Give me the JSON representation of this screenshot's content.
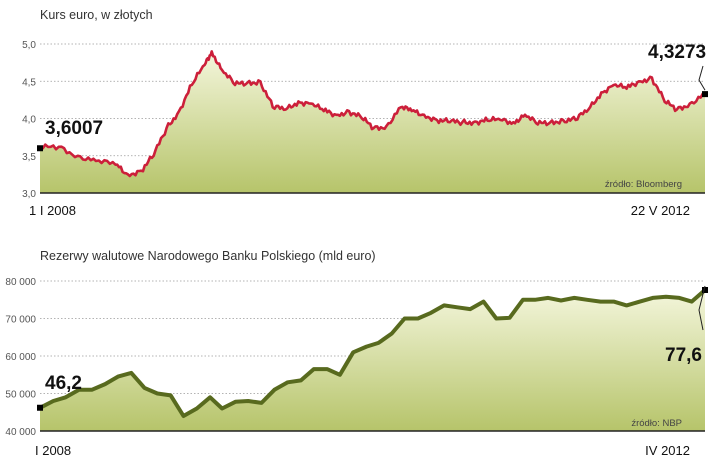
{
  "colors": {
    "top_line": "#cc1f3a",
    "bottom_line": "#586a1e",
    "area_light": "#f4f6dc",
    "area_dark": "#b6c46a",
    "grid": "#9a9a9a",
    "marker": "#000000"
  },
  "chart_data": [
    {
      "type": "area",
      "title": "Kurs euro, w złotych",
      "source": "źródło: Bloomberg",
      "x_start_label": "1 I 2008",
      "x_end_label": "22 V 2012",
      "x_range": [
        "2008-01-01",
        "2012-05-22"
      ],
      "yticks": [
        "5,0",
        "4,5",
        "4,0",
        "3,5",
        "3,0"
      ],
      "ylim": [
        3.0,
        5.0
      ],
      "grid": true,
      "callouts": {
        "start": "3,6007",
        "end": "4,3273"
      },
      "series": [
        {
          "x": [
            "2008-01-01",
            "2008-02-15",
            "2008-04-01",
            "2008-05-15",
            "2008-07-01",
            "2008-07-31",
            "2008-09-01",
            "2008-10-01",
            "2008-11-01",
            "2008-12-01",
            "2009-01-01",
            "2009-02-01",
            "2009-02-18",
            "2009-03-15",
            "2009-04-15",
            "2009-05-15",
            "2009-06-15",
            "2009-07-15",
            "2009-08-15",
            "2009-09-15",
            "2009-10-15",
            "2009-11-15",
            "2009-12-15",
            "2010-01-15",
            "2010-02-15",
            "2010-03-15",
            "2010-04-15",
            "2010-05-20",
            "2010-06-15",
            "2010-07-15",
            "2010-08-15",
            "2010-09-15",
            "2010-10-15",
            "2010-11-15",
            "2010-12-15",
            "2011-01-15",
            "2011-02-15",
            "2011-03-15",
            "2011-04-15",
            "2011-05-15",
            "2011-06-15",
            "2011-07-15",
            "2011-08-15",
            "2011-09-15",
            "2011-10-15",
            "2011-11-15",
            "2011-12-15",
            "2012-01-15",
            "2012-02-15",
            "2012-03-15",
            "2012-04-15",
            "2012-05-22"
          ],
          "values": [
            3.6007,
            3.62,
            3.5,
            3.43,
            3.38,
            3.25,
            3.3,
            3.5,
            3.87,
            4.1,
            4.45,
            4.72,
            4.9,
            4.65,
            4.45,
            4.48,
            4.5,
            4.15,
            4.12,
            4.23,
            4.2,
            4.1,
            4.05,
            4.1,
            4.0,
            3.87,
            3.9,
            4.15,
            4.1,
            4.05,
            3.98,
            3.95,
            3.95,
            3.96,
            3.97,
            3.98,
            3.95,
            4.05,
            3.92,
            3.95,
            3.98,
            3.98,
            4.12,
            4.35,
            4.45,
            4.4,
            4.5,
            4.55,
            4.22,
            4.12,
            4.2,
            4.3273
          ]
        }
      ]
    },
    {
      "type": "area",
      "title": "Rezerwy walutowe Narodowego Banku Polskiego (mld euro)",
      "source": "źródło: NBP",
      "x_start_label": "I 2008",
      "x_end_label": "IV 2012",
      "x_range": [
        "2008-01",
        "2012-04"
      ],
      "yticks": [
        "80 000",
        "70 000",
        "60 000",
        "50 000",
        "40 000"
      ],
      "ylim": [
        40000,
        80000
      ],
      "grid": true,
      "callouts": {
        "start": "46,2",
        "end": "77,6"
      },
      "series": [
        {
          "x": [
            "2008-01",
            "2008-02",
            "2008-03",
            "2008-04",
            "2008-05",
            "2008-06",
            "2008-07",
            "2008-08",
            "2008-09",
            "2008-10",
            "2008-11",
            "2008-12",
            "2009-01",
            "2009-02",
            "2009-03",
            "2009-04",
            "2009-05",
            "2009-06",
            "2009-07",
            "2009-08",
            "2009-09",
            "2009-10",
            "2009-11",
            "2009-12",
            "2010-01",
            "2010-02",
            "2010-03",
            "2010-04",
            "2010-05",
            "2010-06",
            "2010-07",
            "2010-08",
            "2010-09",
            "2010-10",
            "2010-11",
            "2010-12",
            "2011-01",
            "2011-02",
            "2011-03",
            "2011-04",
            "2011-05",
            "2011-06",
            "2011-07",
            "2011-08",
            "2011-09",
            "2011-10",
            "2011-11",
            "2011-12",
            "2012-01",
            "2012-02",
            "2012-03",
            "2012-04"
          ],
          "values": [
            46200,
            48000,
            49000,
            51000,
            51000,
            52500,
            54500,
            55500,
            51500,
            50000,
            49500,
            44000,
            46000,
            49000,
            46000,
            47800,
            48000,
            47500,
            51000,
            53000,
            53500,
            56500,
            56500,
            55000,
            61000,
            62500,
            63500,
            66000,
            70000,
            70000,
            71500,
            73500,
            73000,
            72500,
            74500,
            70000,
            70200,
            75000,
            75000,
            75500,
            74800,
            75500,
            75000,
            74500,
            74500,
            73500,
            74500,
            75500,
            75800,
            75500,
            74500,
            77600
          ]
        }
      ]
    }
  ]
}
